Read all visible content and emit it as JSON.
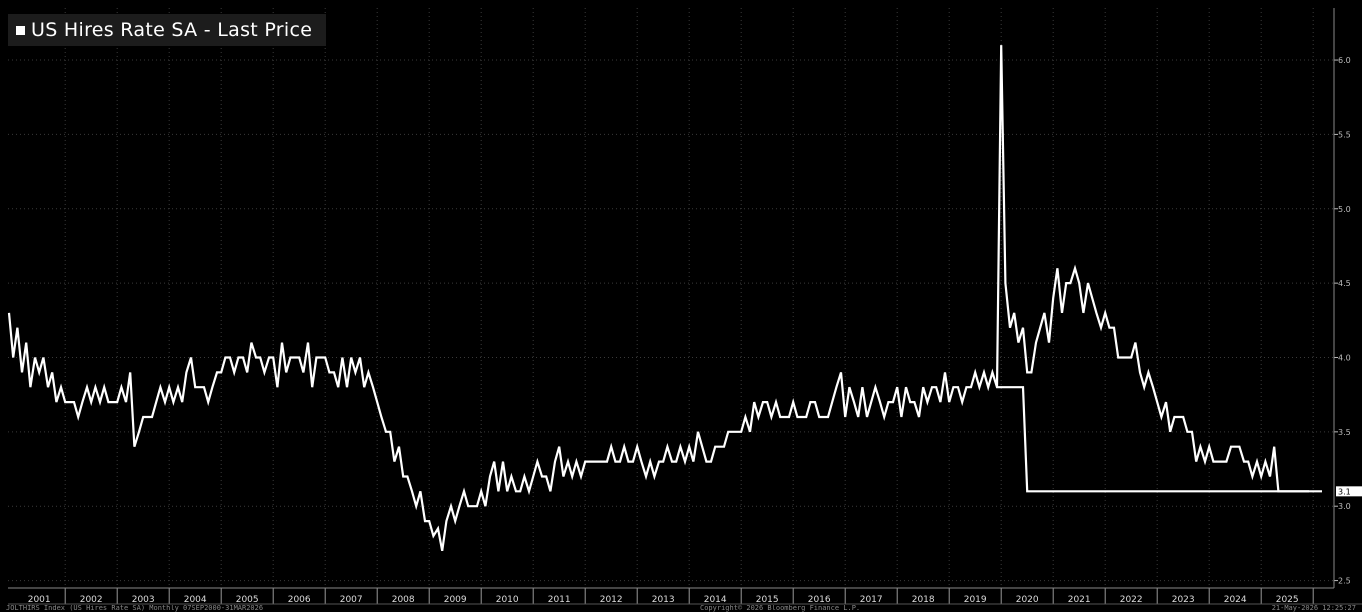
{
  "top_mark": "",
  "legend": {
    "label": "US Hires Rate SA - Last Price"
  },
  "last_value_tag": "3.1",
  "footer": {
    "left": "JOLTHIRS Index (US Hires Rate SA) Monthly 07SEP2000-31MAR2026",
    "center": "Copyright© 2026 Bloomberg Finance L.P.",
    "right": "21-May-2026 12:25:27"
  },
  "colors": {
    "background": "#000000",
    "line": "#ffffff",
    "grid": "#3a3a3a"
  },
  "chart_data": {
    "type": "line",
    "title": "US Hires Rate SA - Last Price",
    "xlabel": "",
    "ylabel": "",
    "x_tick_labels": [
      "2001",
      "2002",
      "2003",
      "2004",
      "2005",
      "2006",
      "2007",
      "2008",
      "2009",
      "2010",
      "2011",
      "2012",
      "2013",
      "2014",
      "2015",
      "2016",
      "2017",
      "2018",
      "2019",
      "2020",
      "2021",
      "2022",
      "2023",
      "2024",
      "2025"
    ],
    "y_tick_labels": [
      "2.5",
      "3.0",
      "3.5",
      "4.0",
      "4.5",
      "5.0",
      "5.5",
      "6.0"
    ],
    "ylim": [
      2.45,
      6.35
    ],
    "xlim": [
      2000.9,
      2026.4
    ],
    "grid": true,
    "legend_position": "top-left",
    "series": [
      {
        "name": "US Hires Rate SA - Last Price",
        "x": [
          2000.92,
          2001.0,
          2001.08,
          2001.17,
          2001.25,
          2001.33,
          2001.42,
          2001.5,
          2001.58,
          2001.67,
          2001.75,
          2001.83,
          2001.92,
          2002.0,
          2002.08,
          2002.17,
          2002.25,
          2002.33,
          2002.42,
          2002.5,
          2002.58,
          2002.67,
          2002.75,
          2002.83,
          2002.92,
          2003.0,
          2003.08,
          2003.17,
          2003.25,
          2003.33,
          2003.42,
          2003.5,
          2003.58,
          2003.67,
          2003.75,
          2003.83,
          2003.92,
          2004.0,
          2004.08,
          2004.17,
          2004.25,
          2004.33,
          2004.42,
          2004.5,
          2004.58,
          2004.67,
          2004.75,
          2004.83,
          2004.92,
          2005.0,
          2005.08,
          2005.17,
          2005.25,
          2005.33,
          2005.42,
          2005.5,
          2005.58,
          2005.67,
          2005.75,
          2005.83,
          2005.92,
          2006.0,
          2006.08,
          2006.17,
          2006.25,
          2006.33,
          2006.42,
          2006.5,
          2006.58,
          2006.67,
          2006.75,
          2006.83,
          2006.92,
          2007.0,
          2007.08,
          2007.17,
          2007.25,
          2007.33,
          2007.42,
          2007.5,
          2007.58,
          2007.67,
          2007.75,
          2007.83,
          2007.92,
          2008.0,
          2008.08,
          2008.17,
          2008.25,
          2008.33,
          2008.42,
          2008.5,
          2008.58,
          2008.67,
          2008.75,
          2008.83,
          2008.92,
          2009.0,
          2009.08,
          2009.17,
          2009.25,
          2009.33,
          2009.42,
          2009.5,
          2009.58,
          2009.67,
          2009.75,
          2009.83,
          2009.92,
          2010.0,
          2010.08,
          2010.17,
          2010.25,
          2010.33,
          2010.42,
          2010.5,
          2010.58,
          2010.67,
          2010.75,
          2010.83,
          2010.92,
          2011.0,
          2011.08,
          2011.17,
          2011.25,
          2011.33,
          2011.42,
          2011.5,
          2011.58,
          2011.67,
          2011.75,
          2011.83,
          2011.92,
          2012.0,
          2012.08,
          2012.17,
          2012.25,
          2012.33,
          2012.42,
          2012.5,
          2012.58,
          2012.67,
          2012.75,
          2012.83,
          2012.92,
          2013.0,
          2013.08,
          2013.17,
          2013.25,
          2013.33,
          2013.42,
          2013.5,
          2013.58,
          2013.67,
          2013.75,
          2013.83,
          2013.92,
          2014.0,
          2014.08,
          2014.17,
          2014.25,
          2014.33,
          2014.42,
          2014.5,
          2014.58,
          2014.67,
          2014.75,
          2014.83,
          2014.92,
          2015.0,
          2015.08,
          2015.17,
          2015.25,
          2015.33,
          2015.42,
          2015.5,
          2015.58,
          2015.67,
          2015.75,
          2015.83,
          2015.92,
          2016.0,
          2016.08,
          2016.17,
          2016.25,
          2016.33,
          2016.42,
          2016.5,
          2016.58,
          2016.67,
          2016.75,
          2016.83,
          2016.92,
          2017.0,
          2017.08,
          2017.17,
          2017.25,
          2017.33,
          2017.42,
          2017.5,
          2017.58,
          2017.67,
          2017.75,
          2017.83,
          2017.92,
          2018.0,
          2018.08,
          2018.17,
          2018.25,
          2018.33,
          2018.42,
          2018.5,
          2018.58,
          2018.67,
          2018.75,
          2018.83,
          2018.92,
          2019.0,
          2019.08,
          2019.17,
          2019.25,
          2019.33,
          2019.42,
          2019.5,
          2019.58,
          2019.67,
          2019.75,
          2019.83,
          2019.92,
          2020.0,
          2020.08,
          2020.17,
          2020.25,
          2020.33,
          2020.42,
          2020.5,
          2020.58,
          2020.67,
          2020.75,
          2020.83,
          2020.92,
          2021.0,
          2021.08,
          2021.17,
          2021.25,
          2021.33,
          2021.42,
          2021.5,
          2021.58,
          2021.67,
          2021.75,
          2021.83,
          2021.92,
          2022.0,
          2022.08,
          2022.17,
          2022.25,
          2022.33,
          2022.42,
          2022.5,
          2022.58,
          2022.67,
          2022.75,
          2022.83,
          2022.92,
          2023.0,
          2023.08,
          2023.17,
          2023.25,
          2023.33,
          2023.42,
          2023.5,
          2023.58,
          2023.67,
          2023.75,
          2023.83,
          2023.92,
          2024.0,
          2024.08,
          2024.17,
          2024.25,
          2024.33,
          2024.42,
          2024.5,
          2024.58,
          2024.67,
          2024.75,
          2024.83,
          2024.92,
          2025.0,
          2025.08,
          2025.17,
          2025.25,
          2025.33,
          2025.42,
          2025.5,
          2025.58,
          2025.67,
          2025.75,
          2025.83,
          2025.92,
          2026.0,
          2026.08,
          2026.17
        ],
        "y": [
          4.3,
          4.0,
          4.2,
          3.9,
          4.1,
          3.8,
          4.0,
          3.9,
          4.0,
          3.8,
          3.9,
          3.7,
          3.8,
          3.7,
          3.7,
          3.7,
          3.6,
          3.7,
          3.8,
          3.7,
          3.8,
          3.7,
          3.8,
          3.7,
          3.7,
          3.7,
          3.8,
          3.7,
          3.9,
          3.4,
          3.5,
          3.6,
          3.6,
          3.6,
          3.7,
          3.8,
          3.7,
          3.8,
          3.7,
          3.8,
          3.7,
          3.9,
          4.0,
          3.8,
          3.8,
          3.8,
          3.7,
          3.8,
          3.9,
          3.9,
          4.0,
          4.0,
          3.9,
          4.0,
          4.0,
          3.9,
          4.1,
          4.0,
          4.0,
          3.9,
          4.0,
          4.0,
          3.8,
          4.1,
          3.9,
          4.0,
          4.0,
          4.0,
          3.9,
          4.1,
          3.8,
          4.0,
          4.0,
          4.0,
          3.9,
          3.9,
          3.8,
          4.0,
          3.8,
          4.0,
          3.9,
          4.0,
          3.8,
          3.9,
          3.8,
          3.7,
          3.6,
          3.5,
          3.5,
          3.3,
          3.4,
          3.2,
          3.2,
          3.1,
          3.0,
          3.1,
          2.9,
          2.9,
          2.8,
          2.85,
          2.7,
          2.9,
          3.0,
          2.9,
          3.0,
          3.1,
          3.0,
          3.0,
          3.0,
          3.1,
          3.0,
          3.2,
          3.3,
          3.1,
          3.3,
          3.1,
          3.2,
          3.1,
          3.1,
          3.2,
          3.1,
          3.2,
          3.3,
          3.2,
          3.2,
          3.1,
          3.3,
          3.4,
          3.2,
          3.3,
          3.2,
          3.3,
          3.2,
          3.3,
          3.3,
          3.3,
          3.3,
          3.3,
          3.3,
          3.4,
          3.3,
          3.3,
          3.4,
          3.3,
          3.3,
          3.4,
          3.3,
          3.2,
          3.3,
          3.2,
          3.3,
          3.3,
          3.4,
          3.3,
          3.3,
          3.4,
          3.3,
          3.4,
          3.3,
          3.5,
          3.4,
          3.3,
          3.3,
          3.4,
          3.4,
          3.4,
          3.5,
          3.5,
          3.5,
          3.5,
          3.6,
          3.5,
          3.7,
          3.6,
          3.7,
          3.7,
          3.6,
          3.7,
          3.6,
          3.6,
          3.6,
          3.7,
          3.6,
          3.6,
          3.6,
          3.7,
          3.7,
          3.6,
          3.6,
          3.6,
          3.7,
          3.8,
          3.9,
          3.6,
          3.8,
          3.7,
          3.6,
          3.8,
          3.6,
          3.7,
          3.8,
          3.7,
          3.6,
          3.7,
          3.7,
          3.8,
          3.6,
          3.8,
          3.7,
          3.7,
          3.6,
          3.8,
          3.7,
          3.8,
          3.8,
          3.7,
          3.9,
          3.7,
          3.8,
          3.8,
          3.7,
          3.8,
          3.8,
          3.9,
          3.8,
          3.9,
          3.8,
          3.9,
          3.8,
          3.8,
          3.8,
          3.8,
          3.8,
          3.8,
          3.8,
          3.1,
          3.1,
          3.1,
          3.1,
          3.1,
          3.1,
          3.1,
          3.1,
          3.1,
          3.1,
          3.1,
          3.1,
          3.1,
          3.1,
          3.1,
          3.1,
          3.1,
          3.1,
          3.1,
          3.1,
          3.1,
          3.1,
          3.1,
          3.1,
          3.1,
          3.1,
          3.1,
          3.1,
          3.1,
          3.1,
          3.1,
          3.1,
          3.1,
          3.1,
          3.1,
          3.1,
          3.1,
          3.1,
          3.1,
          3.1,
          3.1,
          3.1,
          3.1,
          3.1,
          3.1,
          3.1,
          3.1,
          3.1,
          3.1,
          3.1,
          3.1,
          3.1,
          3.1,
          3.1,
          3.1,
          3.1,
          3.1,
          3.1,
          3.1,
          3.1,
          3.1,
          3.1,
          3.1,
          3.1,
          3.1,
          3.1,
          3.1,
          3.1,
          3.1
        ]
      },
      {
        "name": "",
        "x": [
          2019.92,
          2020.0,
          2020.08,
          2020.17,
          2020.25,
          2020.33,
          2020.42,
          2020.5,
          2020.58,
          2020.67,
          2020.75,
          2020.83,
          2020.92,
          2021.0,
          2021.08,
          2021.17,
          2021.25,
          2021.33,
          2021.42,
          2021.5,
          2021.58,
          2021.67,
          2021.75,
          2021.83,
          2021.92,
          2022.0,
          2022.08,
          2022.17,
          2022.25,
          2022.33,
          2022.42,
          2022.5,
          2022.58,
          2022.67,
          2022.75,
          2022.83,
          2022.92,
          2023.0,
          2023.08,
          2023.17,
          2023.25,
          2023.33,
          2023.42,
          2023.5,
          2023.58,
          2023.67,
          2023.75,
          2023.83,
          2023.92,
          2024.0,
          2024.08,
          2024.17,
          2024.25,
          2024.33,
          2024.42,
          2024.5,
          2024.58,
          2024.67,
          2024.75,
          2024.83,
          2024.92,
          2025.0,
          2025.08,
          2025.17,
          2025.25,
          2025.33,
          2025.42,
          2025.5,
          2025.58,
          2025.67,
          2025.75,
          2025.83,
          2025.92
        ],
        "y": [
          3.8,
          6.1,
          4.5,
          4.2,
          4.3,
          4.1,
          4.2,
          3.9,
          3.9,
          4.1,
          4.2,
          4.3,
          4.1,
          4.4,
          4.6,
          4.3,
          4.5,
          4.5,
          4.6,
          4.5,
          4.3,
          4.5,
          4.4,
          4.3,
          4.2,
          4.3,
          4.2,
          4.2,
          4.0,
          4.0,
          4.0,
          4.0,
          4.1,
          3.9,
          3.8,
          3.9,
          3.8,
          3.7,
          3.6,
          3.7,
          3.5,
          3.6,
          3.6,
          3.6,
          3.5,
          3.5,
          3.3,
          3.4,
          3.3,
          3.4,
          3.3,
          3.3,
          3.3,
          3.3,
          3.4,
          3.4,
          3.4,
          3.3,
          3.3,
          3.2,
          3.3,
          3.2,
          3.3,
          3.2,
          3.4,
          3.1,
          3.1,
          3.1,
          3.1,
          3.1,
          3.1,
          3.1,
          3.1
        ]
      }
    ]
  }
}
